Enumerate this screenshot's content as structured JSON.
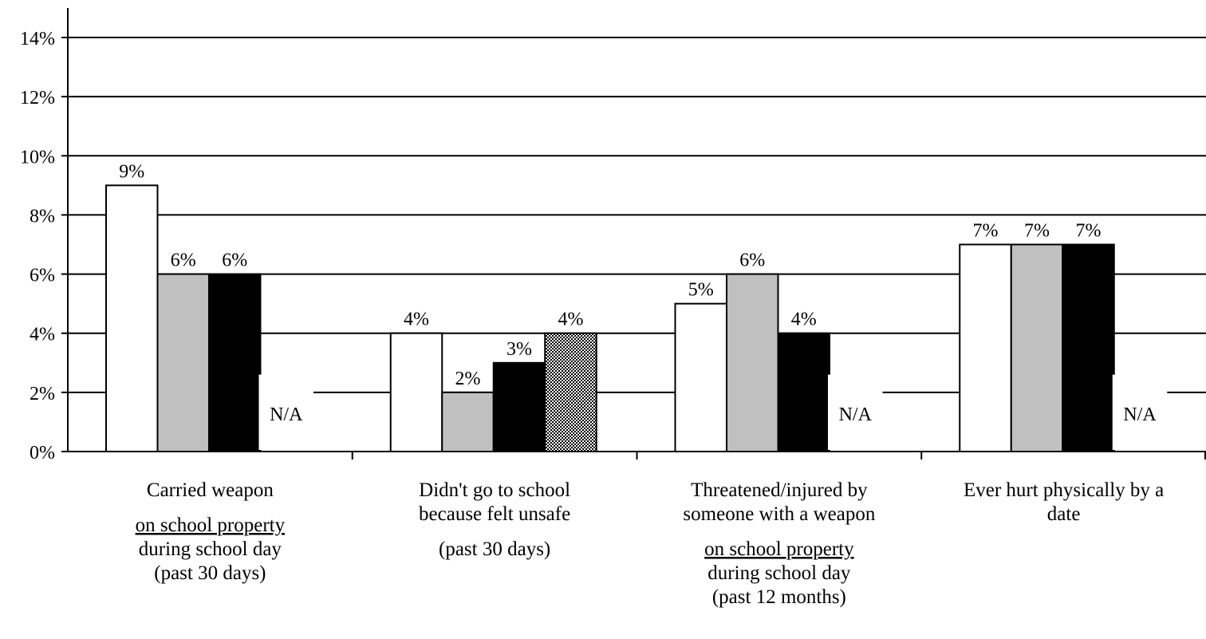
{
  "chart_data": {
    "type": "bar",
    "title": "",
    "xlabel": "",
    "ylabel": "",
    "ylim": [
      0,
      14
    ],
    "yticks": [
      "0%",
      "2%",
      "4%",
      "6%",
      "8%",
      "10%",
      "12%",
      "14%"
    ],
    "grid": true,
    "legend": "none",
    "categories": [
      {
        "lines": [
          {
            "text": "Carried weapon",
            "underline": false,
            "gap_before": false
          },
          {
            "text": "on school property",
            "underline": true,
            "gap_before": true
          },
          {
            "text": "during school day",
            "underline": false,
            "gap_before": false
          },
          {
            "text": "(past 30 days)",
            "underline": false,
            "gap_before": false
          }
        ]
      },
      {
        "lines": [
          {
            "text": "Didn't go to school",
            "underline": false,
            "gap_before": false
          },
          {
            "text": "because felt unsafe",
            "underline": false,
            "gap_before": false
          },
          {
            "text": "(past 30 days)",
            "underline": false,
            "gap_before": true
          }
        ]
      },
      {
        "lines": [
          {
            "text": "Threatened/injured by",
            "underline": false,
            "gap_before": false
          },
          {
            "text": "someone with a weapon",
            "underline": false,
            "gap_before": false
          },
          {
            "text": "on school property",
            "underline": true,
            "gap_before": true
          },
          {
            "text": "during school day",
            "underline": false,
            "gap_before": false
          },
          {
            "text": "(past 12 months)",
            "underline": false,
            "gap_before": false
          }
        ]
      },
      {
        "lines": [
          {
            "text": "Ever hurt physically by a",
            "underline": false,
            "gap_before": false
          },
          {
            "text": "date",
            "underline": false,
            "gap_before": false
          }
        ]
      }
    ],
    "series": [
      {
        "fill": "#ffffff",
        "pattern": false,
        "values": [
          9,
          4,
          5,
          7
        ],
        "labels": [
          "9%",
          "4%",
          "5%",
          "7%"
        ]
      },
      {
        "fill": "#c0c0c0",
        "pattern": false,
        "values": [
          6,
          2,
          6,
          7
        ],
        "labels": [
          "6%",
          "2%",
          "6%",
          "7%"
        ]
      },
      {
        "fill": "#000000",
        "pattern": false,
        "values": [
          6,
          3,
          4,
          7
        ],
        "labels": [
          "6%",
          "3%",
          "4%",
          "7%"
        ]
      },
      {
        "fill": "#9a9a9a",
        "pattern": true,
        "values": [
          null,
          4,
          null,
          null
        ],
        "labels": [
          "N/A",
          "4%",
          "N/A",
          "N/A"
        ]
      }
    ]
  }
}
